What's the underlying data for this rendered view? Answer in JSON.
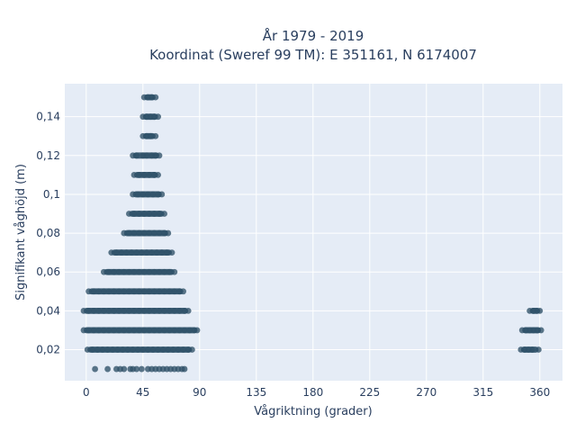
{
  "chart_data": {
    "type": "scatter",
    "title_line1": "År 1979 - 2019",
    "title_line2": "Koordinat (Sweref 99 TM): E 351161, N 6174007",
    "xlabel": "Vågriktning (grader)",
    "ylabel": "Signifikant våghöjd (m)",
    "xlim": [
      -17,
      378
    ],
    "ylim": [
      0.004,
      0.157
    ],
    "xticks": [
      0,
      45,
      90,
      135,
      180,
      225,
      270,
      315,
      360
    ],
    "xtick_labels": [
      "0",
      "45",
      "90",
      "135",
      "180",
      "225",
      "270",
      "315",
      "360"
    ],
    "yticks": [
      0.02,
      0.04,
      0.06,
      0.08,
      0.1,
      0.12,
      0.14
    ],
    "ytick_labels": [
      "0,02",
      "0,04",
      "0,06",
      "0,08",
      "0,1",
      "0,12",
      "0,14"
    ],
    "grid": true,
    "colors": {
      "marker": "#2f5168",
      "plot_bg": "#e5ecf6",
      "grid": "#ffffff",
      "text": "#2a3f5f"
    },
    "points": [
      [
        7,
        0.01
      ],
      [
        17,
        0.01
      ],
      [
        24,
        0.01
      ],
      [
        27,
        0.01
      ],
      [
        30,
        0.01
      ],
      [
        35,
        0.01
      ],
      [
        37,
        0.01
      ],
      [
        40,
        0.01
      ],
      [
        44,
        0.01
      ],
      [
        49,
        0.01
      ],
      [
        52,
        0.01
      ],
      [
        55,
        0.01
      ],
      [
        58,
        0.01
      ],
      [
        61,
        0.01
      ],
      [
        64,
        0.01
      ],
      [
        67,
        0.01
      ],
      [
        70,
        0.01
      ],
      [
        73,
        0.01
      ],
      [
        76,
        0.01
      ],
      [
        78,
        0.01
      ],
      [
        1,
        0.02
      ],
      [
        5,
        0.02
      ],
      [
        9,
        0.02
      ],
      [
        13,
        0.02
      ],
      [
        17,
        0.02
      ],
      [
        21,
        0.02
      ],
      [
        25,
        0.02
      ],
      [
        29,
        0.02
      ],
      [
        33,
        0.02
      ],
      [
        37,
        0.02
      ],
      [
        41,
        0.02
      ],
      [
        45,
        0.02
      ],
      [
        49,
        0.02
      ],
      [
        53,
        0.02
      ],
      [
        57,
        0.02
      ],
      [
        61,
        0.02
      ],
      [
        65,
        0.02
      ],
      [
        69,
        0.02
      ],
      [
        73,
        0.02
      ],
      [
        77,
        0.02
      ],
      [
        81,
        0.02
      ],
      [
        84,
        0.02
      ],
      [
        -2,
        0.03
      ],
      [
        2,
        0.03
      ],
      [
        6,
        0.03
      ],
      [
        10,
        0.03
      ],
      [
        14,
        0.03
      ],
      [
        18,
        0.03
      ],
      [
        22,
        0.03
      ],
      [
        26,
        0.03
      ],
      [
        30,
        0.03
      ],
      [
        34,
        0.03
      ],
      [
        38,
        0.03
      ],
      [
        42,
        0.03
      ],
      [
        46,
        0.03
      ],
      [
        50,
        0.03
      ],
      [
        54,
        0.03
      ],
      [
        58,
        0.03
      ],
      [
        62,
        0.03
      ],
      [
        66,
        0.03
      ],
      [
        70,
        0.03
      ],
      [
        74,
        0.03
      ],
      [
        78,
        0.03
      ],
      [
        82,
        0.03
      ],
      [
        86,
        0.03
      ],
      [
        88,
        0.03
      ],
      [
        -2,
        0.04
      ],
      [
        2,
        0.04
      ],
      [
        6,
        0.04
      ],
      [
        10,
        0.04
      ],
      [
        14,
        0.04
      ],
      [
        18,
        0.04
      ],
      [
        22,
        0.04
      ],
      [
        26,
        0.04
      ],
      [
        30,
        0.04
      ],
      [
        34,
        0.04
      ],
      [
        38,
        0.04
      ],
      [
        42,
        0.04
      ],
      [
        46,
        0.04
      ],
      [
        50,
        0.04
      ],
      [
        54,
        0.04
      ],
      [
        58,
        0.04
      ],
      [
        62,
        0.04
      ],
      [
        66,
        0.04
      ],
      [
        70,
        0.04
      ],
      [
        74,
        0.04
      ],
      [
        78,
        0.04
      ],
      [
        81,
        0.04
      ],
      [
        2,
        0.05
      ],
      [
        6,
        0.05
      ],
      [
        10,
        0.05
      ],
      [
        14,
        0.05
      ],
      [
        18,
        0.05
      ],
      [
        22,
        0.05
      ],
      [
        26,
        0.05
      ],
      [
        30,
        0.05
      ],
      [
        34,
        0.05
      ],
      [
        38,
        0.05
      ],
      [
        42,
        0.05
      ],
      [
        46,
        0.05
      ],
      [
        50,
        0.05
      ],
      [
        54,
        0.05
      ],
      [
        58,
        0.05
      ],
      [
        62,
        0.05
      ],
      [
        66,
        0.05
      ],
      [
        70,
        0.05
      ],
      [
        74,
        0.05
      ],
      [
        77,
        0.05
      ],
      [
        14,
        0.06
      ],
      [
        18,
        0.06
      ],
      [
        22,
        0.06
      ],
      [
        26,
        0.06
      ],
      [
        30,
        0.06
      ],
      [
        34,
        0.06
      ],
      [
        38,
        0.06
      ],
      [
        42,
        0.06
      ],
      [
        46,
        0.06
      ],
      [
        50,
        0.06
      ],
      [
        54,
        0.06
      ],
      [
        58,
        0.06
      ],
      [
        62,
        0.06
      ],
      [
        66,
        0.06
      ],
      [
        70,
        0.06
      ],
      [
        20,
        0.07
      ],
      [
        24,
        0.07
      ],
      [
        28,
        0.07
      ],
      [
        32,
        0.07
      ],
      [
        36,
        0.07
      ],
      [
        40,
        0.07
      ],
      [
        44,
        0.07
      ],
      [
        48,
        0.07
      ],
      [
        52,
        0.07
      ],
      [
        56,
        0.07
      ],
      [
        60,
        0.07
      ],
      [
        64,
        0.07
      ],
      [
        68,
        0.07
      ],
      [
        30,
        0.08
      ],
      [
        34,
        0.08
      ],
      [
        38,
        0.08
      ],
      [
        42,
        0.08
      ],
      [
        46,
        0.08
      ],
      [
        50,
        0.08
      ],
      [
        54,
        0.08
      ],
      [
        58,
        0.08
      ],
      [
        62,
        0.08
      ],
      [
        65,
        0.08
      ],
      [
        34,
        0.09
      ],
      [
        38,
        0.09
      ],
      [
        42,
        0.09
      ],
      [
        46,
        0.09
      ],
      [
        50,
        0.09
      ],
      [
        54,
        0.09
      ],
      [
        58,
        0.09
      ],
      [
        62,
        0.09
      ],
      [
        37,
        0.1
      ],
      [
        41,
        0.1
      ],
      [
        45,
        0.1
      ],
      [
        49,
        0.1
      ],
      [
        53,
        0.1
      ],
      [
        57,
        0.1
      ],
      [
        60,
        0.1
      ],
      [
        38,
        0.11
      ],
      [
        42,
        0.11
      ],
      [
        46,
        0.11
      ],
      [
        50,
        0.11
      ],
      [
        54,
        0.11
      ],
      [
        57,
        0.11
      ],
      [
        37,
        0.12
      ],
      [
        40,
        0.12
      ],
      [
        45,
        0.12
      ],
      [
        48,
        0.12
      ],
      [
        52,
        0.12
      ],
      [
        55,
        0.12
      ],
      [
        58,
        0.12
      ],
      [
        45,
        0.13
      ],
      [
        48,
        0.13
      ],
      [
        51,
        0.13
      ],
      [
        55,
        0.13
      ],
      [
        45,
        0.14
      ],
      [
        48,
        0.14
      ],
      [
        51,
        0.14
      ],
      [
        54,
        0.14
      ],
      [
        57,
        0.14
      ],
      [
        46,
        0.15
      ],
      [
        49,
        0.15
      ],
      [
        52,
        0.15
      ],
      [
        55,
        0.15
      ],
      [
        345,
        0.02
      ],
      [
        348,
        0.02
      ],
      [
        351,
        0.02
      ],
      [
        354,
        0.02
      ],
      [
        359,
        0.02
      ],
      [
        346,
        0.03
      ],
      [
        349,
        0.03
      ],
      [
        352,
        0.03
      ],
      [
        355,
        0.03
      ],
      [
        358,
        0.03
      ],
      [
        361,
        0.03
      ],
      [
        352,
        0.04
      ],
      [
        355,
        0.04
      ],
      [
        358,
        0.04
      ],
      [
        360,
        0.04
      ]
    ]
  }
}
